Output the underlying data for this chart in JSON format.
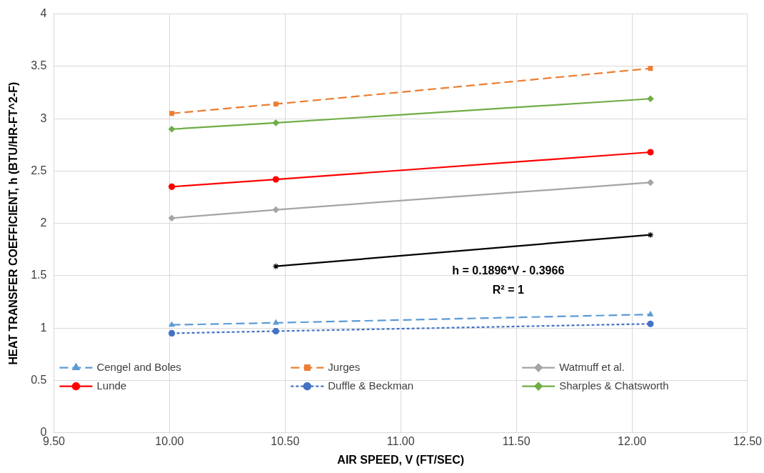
{
  "chart_data": {
    "type": "line",
    "xlabel": "AIR SPEED, V (FT/SEC)",
    "ylabel": "HEAT TRANSFER COEFFICIENT, h (BTU/HR-FT^2-F)",
    "x": [
      10.01,
      10.46,
      12.08
    ],
    "series": [
      {
        "name": "Cengel and Boles",
        "color": "#5b9bd5",
        "values": [
          1.03,
          1.05,
          1.13
        ],
        "marker": "triangle",
        "line_style": "dashed"
      },
      {
        "name": "Jurges",
        "color": "#ed7d31",
        "values": [
          3.05,
          3.14,
          3.48
        ],
        "marker": "square",
        "line_style": "dashed"
      },
      {
        "name": "Watmuff et al.",
        "color": "#a5a5a5",
        "values": [
          2.05,
          2.13,
          2.39
        ],
        "marker": "diamond",
        "line_style": "solid"
      },
      {
        "name": "Lunde",
        "color": "#ff0000",
        "values": [
          2.35,
          2.42,
          2.68
        ],
        "marker": "circle",
        "line_style": "solid"
      },
      {
        "name": "Duffle & Beckman",
        "color": "#4472c4",
        "values": [
          0.95,
          0.97,
          1.04
        ],
        "marker": "circle",
        "line_style": "dotted"
      },
      {
        "name": "Sharples & Chatsworth",
        "color": "#70ad47",
        "values": [
          2.9,
          2.96,
          3.19
        ],
        "marker": "diamond",
        "line_style": "solid"
      },
      {
        "color": "#000000",
        "x": [
          10.46,
          12.08
        ],
        "values": [
          1.59,
          1.89
        ],
        "marker": "cross",
        "line_style": "solid"
      }
    ],
    "xlim": [
      9.5,
      12.5
    ],
    "xticks": [
      {
        "value": 9.5,
        "label": "9.50"
      },
      {
        "value": 10,
        "label": "10.00"
      },
      {
        "value": 10.5,
        "label": "10.50"
      },
      {
        "value": 11,
        "label": "11.00"
      },
      {
        "value": 11.5,
        "label": "11.50"
      },
      {
        "value": 12,
        "label": "12.00"
      },
      {
        "value": 12.5,
        "label": "12.50"
      }
    ],
    "ylim": [
      0,
      4
    ],
    "yticks": [
      0,
      0.5,
      1,
      1.5,
      2,
      2.5,
      3,
      3.5,
      4
    ],
    "grid": true,
    "legend": "bottom",
    "annotations": [
      "h = 0.1896*V - 0.3966",
      "R² = 1"
    ]
  }
}
